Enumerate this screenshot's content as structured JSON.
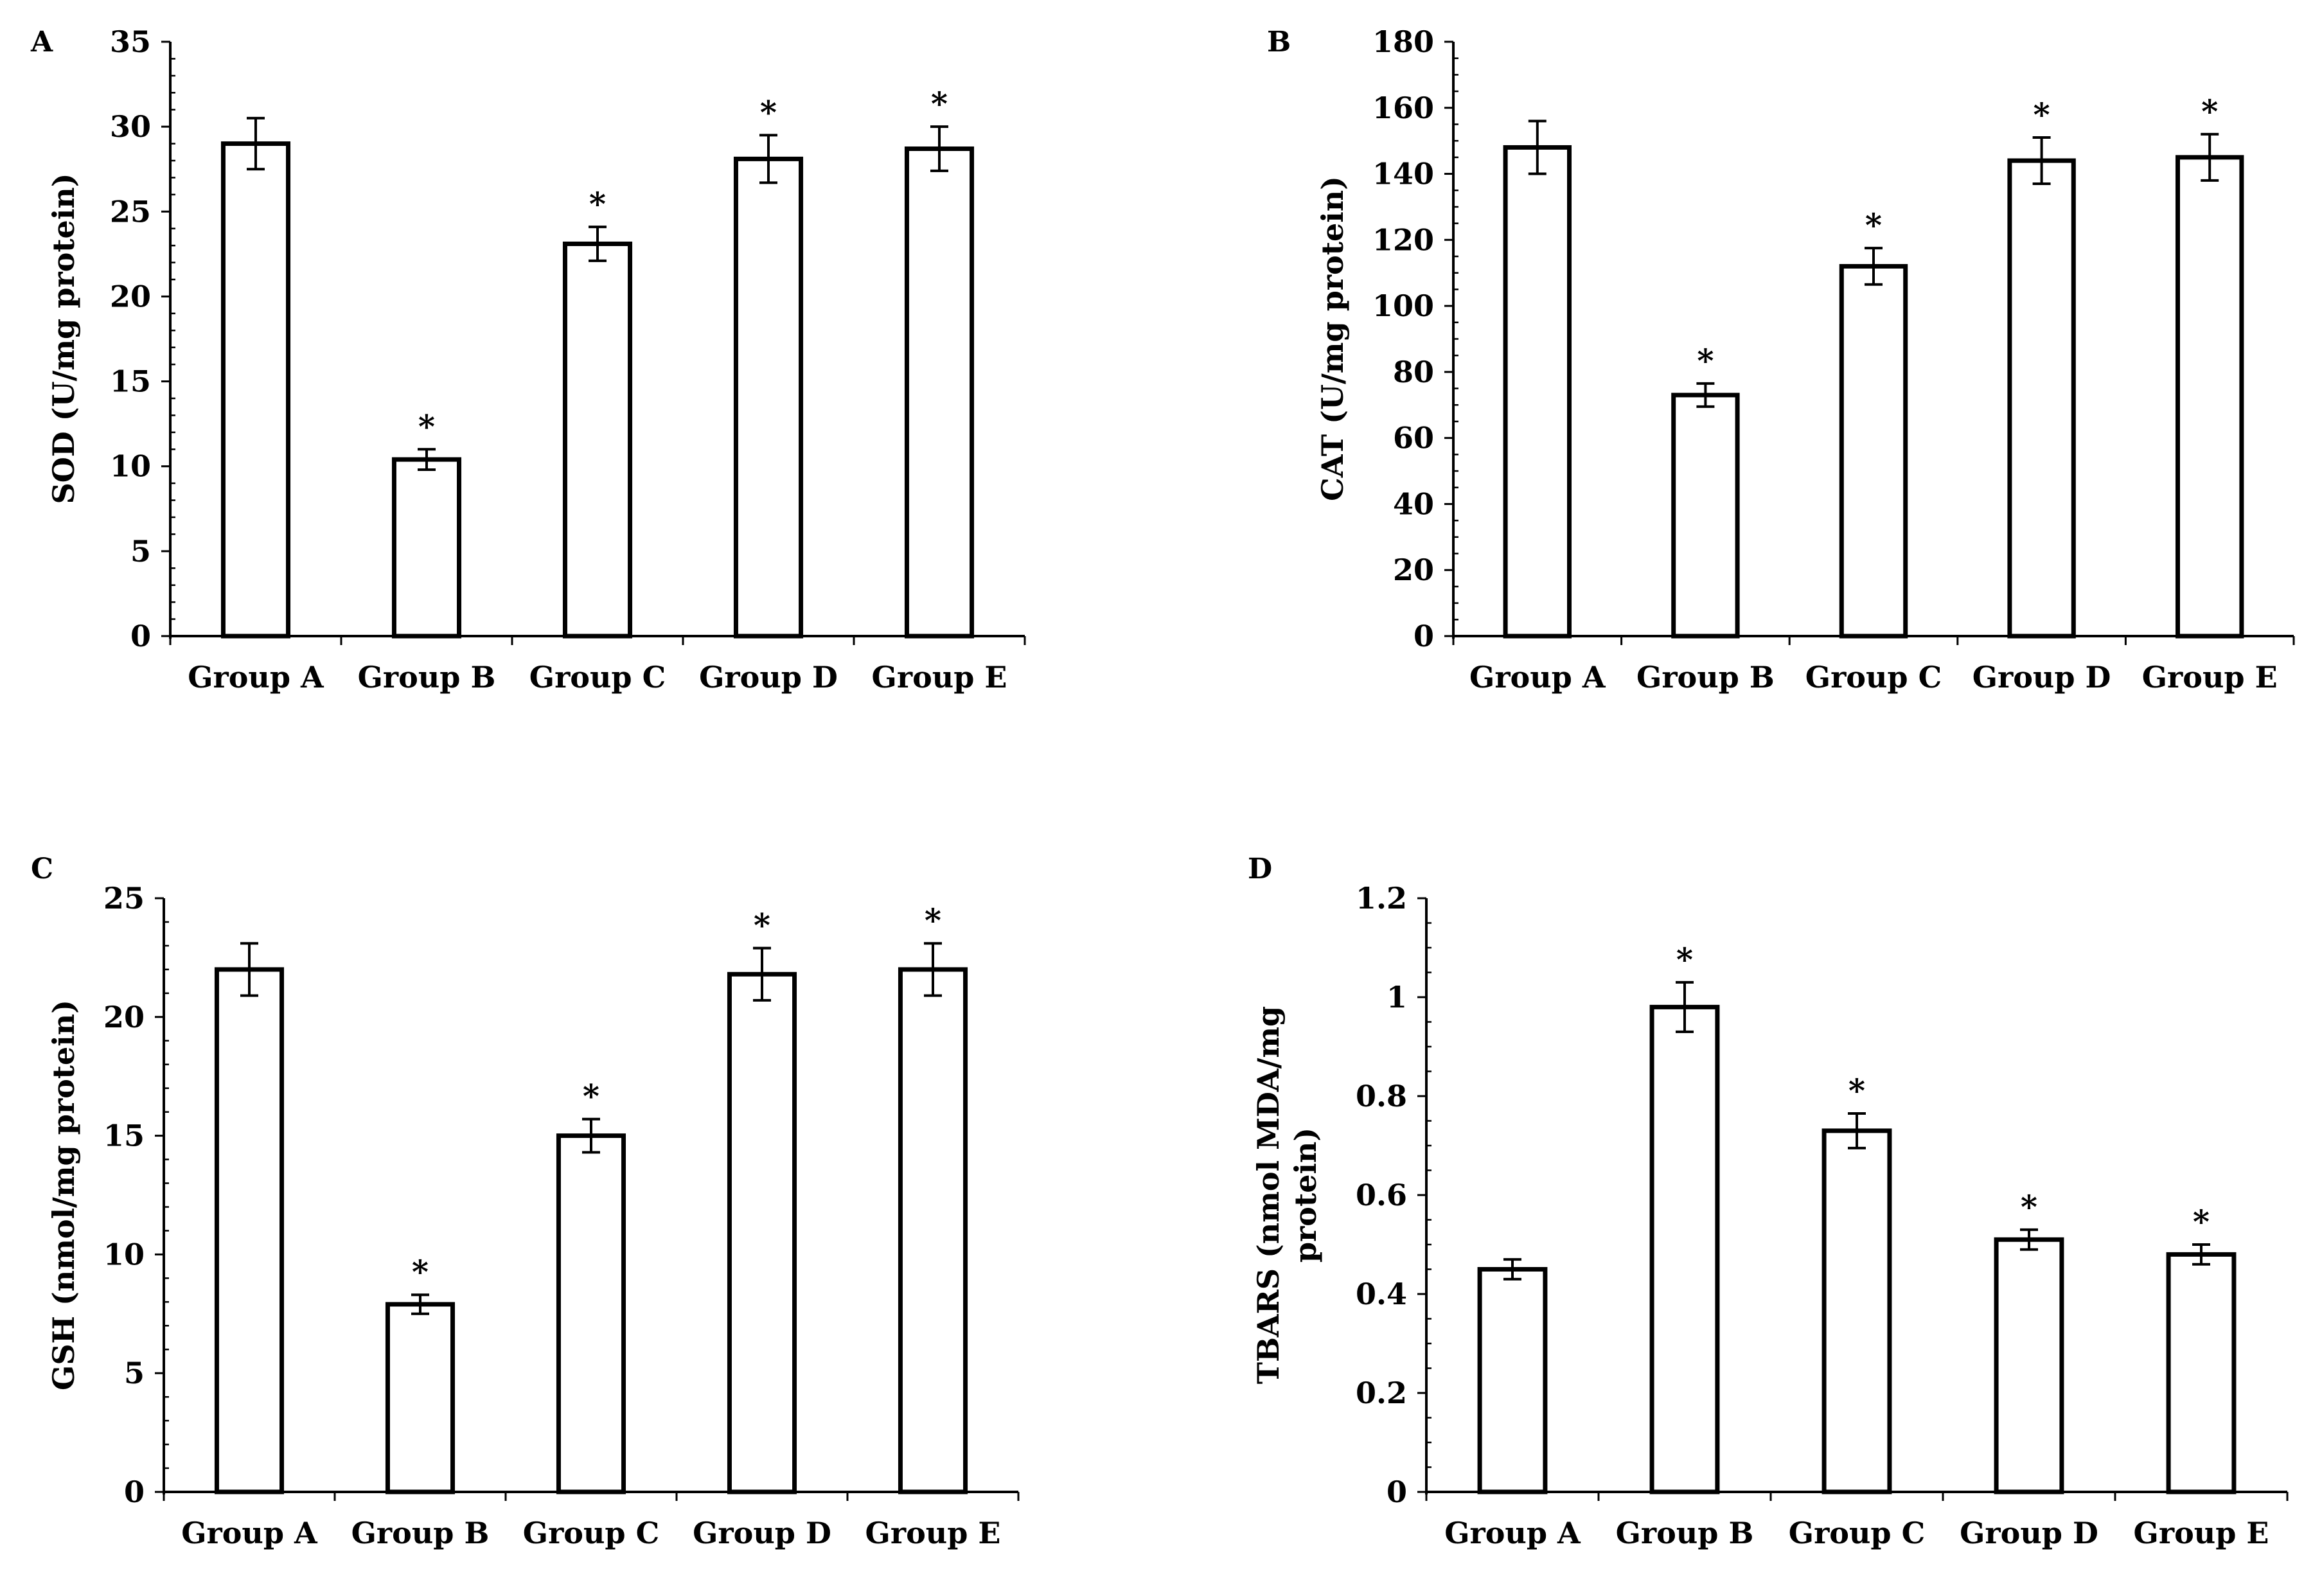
{
  "chart_data": [
    {
      "type": "bar",
      "panel": "A",
      "categories": [
        "Group A",
        "Group B",
        "Group C",
        "Group D",
        "Group E"
      ],
      "values": [
        29.0,
        10.4,
        23.1,
        28.1,
        28.7
      ],
      "errors": [
        1.5,
        0.6,
        1.0,
        1.4,
        1.3
      ],
      "significant": [
        "",
        "*",
        "*",
        "*",
        "*"
      ],
      "ylabel": "SOD (U/mg protein)",
      "ylim": [
        0,
        35
      ],
      "yticks": [
        0,
        5,
        10,
        15,
        20,
        25,
        30,
        35
      ],
      "ytick_labels": [
        "0",
        "5",
        "10",
        "15",
        "20",
        "25",
        "30",
        "35"
      ]
    },
    {
      "type": "bar",
      "panel": "B",
      "categories": [
        "Group A",
        "Group B",
        "Group C",
        "Group D",
        "Group E"
      ],
      "values": [
        148,
        73,
        112,
        144,
        145
      ],
      "errors": [
        8,
        3.5,
        5.5,
        7,
        7
      ],
      "significant": [
        "",
        "*",
        "*",
        "*",
        "*"
      ],
      "ylabel": "CAT (U/mg protein)",
      "ylim": [
        0,
        180
      ],
      "yticks": [
        0,
        20,
        40,
        60,
        80,
        100,
        120,
        140,
        160,
        180
      ],
      "ytick_labels": [
        "0",
        "20",
        "40",
        "60",
        "80",
        "100",
        "120",
        "140",
        "160",
        "180"
      ]
    },
    {
      "type": "bar",
      "panel": "C",
      "categories": [
        "Group A",
        "Group B",
        "Group C",
        "Group D",
        "Group E"
      ],
      "values": [
        22.0,
        7.9,
        15.0,
        21.8,
        22.0
      ],
      "errors": [
        1.1,
        0.4,
        0.7,
        1.1,
        1.1
      ],
      "significant": [
        "",
        "*",
        "*",
        "*",
        "*"
      ],
      "ylabel": "GSH (nmol/mg protein)",
      "ylim": [
        0,
        25
      ],
      "yticks": [
        0,
        5,
        10,
        15,
        20,
        25
      ],
      "ytick_labels": [
        "0",
        "5",
        "10",
        "15",
        "20",
        "25"
      ]
    },
    {
      "type": "bar",
      "panel": "D",
      "categories": [
        "Group A",
        "Group B",
        "Group C",
        "Group D",
        "Group E"
      ],
      "values": [
        0.45,
        0.98,
        0.73,
        0.51,
        0.48
      ],
      "errors": [
        0.02,
        0.05,
        0.035,
        0.02,
        0.02
      ],
      "significant": [
        "",
        "*",
        "*",
        "*",
        "*"
      ],
      "ylabel": "TBARS (nmol MDA/mg protein)",
      "ylabel_lines": [
        "TBARS (nmol MDA/mg",
        "protein)"
      ],
      "ylim": [
        0,
        1.2
      ],
      "yticks": [
        0,
        0.2,
        0.4,
        0.6,
        0.8,
        1.0,
        1.2
      ],
      "ytick_labels": [
        "0",
        "0.2",
        "0.4",
        "0.6",
        "0.8",
        "1",
        "1.2"
      ]
    }
  ]
}
